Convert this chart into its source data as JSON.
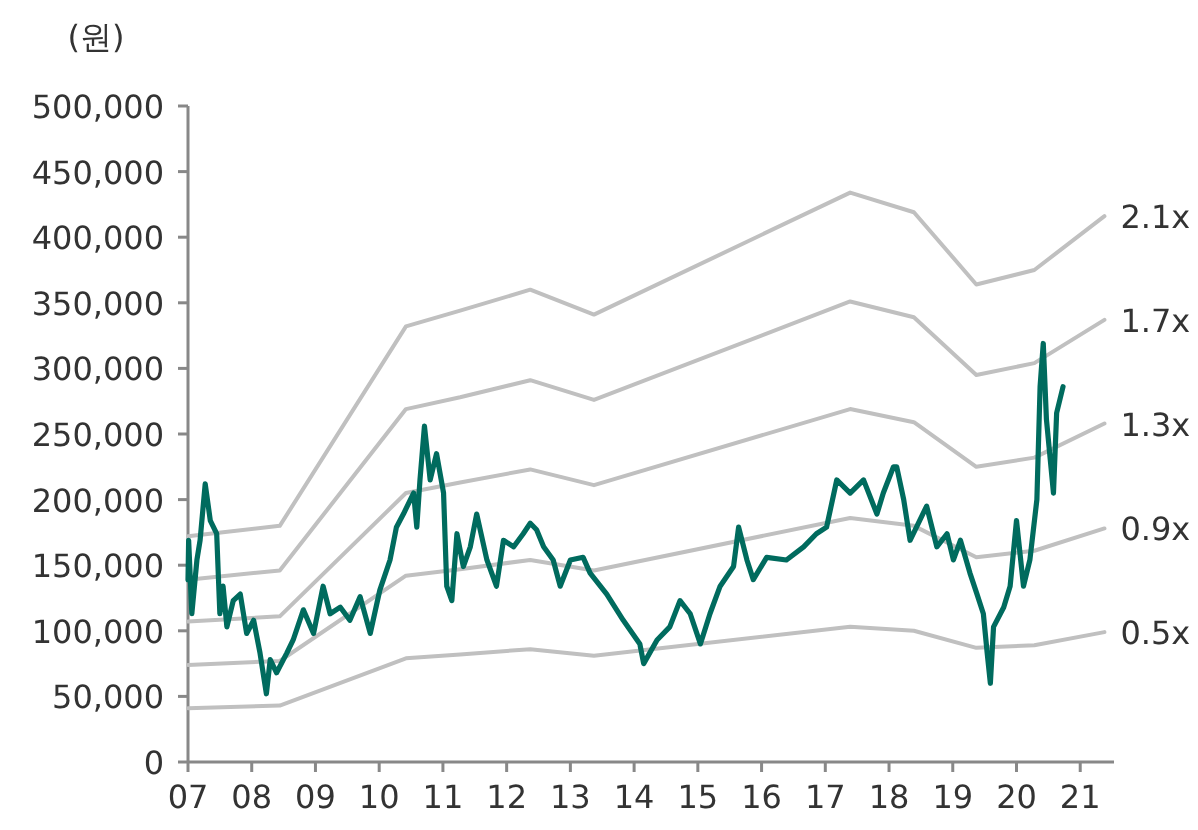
{
  "chart_data": {
    "type": "line",
    "ylabel": "(원)",
    "xlim": [
      2007,
      2021.53
    ],
    "ylim": [
      0,
      500000
    ],
    "xticks": [
      {
        "value": 2007,
        "label": "07"
      },
      {
        "value": 2008,
        "label": "08"
      },
      {
        "value": 2009,
        "label": "09"
      },
      {
        "value": 2010,
        "label": "10"
      },
      {
        "value": 2011,
        "label": "11"
      },
      {
        "value": 2012,
        "label": "12"
      },
      {
        "value": 2013,
        "label": "13"
      },
      {
        "value": 2014,
        "label": "14"
      },
      {
        "value": 2015,
        "label": "15"
      },
      {
        "value": 2016,
        "label": "16"
      },
      {
        "value": 2017,
        "label": "17"
      },
      {
        "value": 2018,
        "label": "18"
      },
      {
        "value": 2019,
        "label": "19"
      },
      {
        "value": 2020,
        "label": "20"
      },
      {
        "value": 2021,
        "label": "21"
      }
    ],
    "yticks": [
      0,
      {
        "value": 50000,
        "label": "50,000"
      },
      {
        "value": 100000,
        "label": "100,000"
      },
      {
        "value": 150000,
        "label": "150,000"
      },
      {
        "value": 200000,
        "label": "200,000"
      },
      {
        "value": 250000,
        "label": "250,000"
      },
      {
        "value": 300000,
        "label": "300,000"
      },
      {
        "value": 350000,
        "label": "350,000"
      },
      {
        "value": 400000,
        "label": "400,000"
      },
      {
        "value": 450000,
        "label": "450,000"
      },
      {
        "value": 500000,
        "label": "500,000"
      }
    ],
    "grid": false,
    "legend": false,
    "line_style": "solid",
    "series": [
      {
        "name": "2.1x",
        "color": "#c0c0c0",
        "x": [
          2007.0,
          2008.44,
          2010.42,
          2011.27,
          2012.37,
          2013.37,
          2017.39,
          2018.39,
          2019.37,
          2020.28,
          2021.38
        ],
        "values": [
          172000,
          180000,
          332000,
          344000,
          360000,
          341000,
          434000,
          419000,
          364000,
          375000,
          416000
        ]
      },
      {
        "name": "1.7x",
        "color": "#c0c0c0",
        "x": [
          2007.0,
          2008.44,
          2010.42,
          2011.27,
          2012.37,
          2013.37,
          2017.39,
          2018.39,
          2019.37,
          2020.28,
          2021.38
        ],
        "values": [
          139000,
          146000,
          269000,
          278000,
          291000,
          276000,
          351000,
          339000,
          295000,
          304000,
          337000
        ]
      },
      {
        "name": "1.3x",
        "color": "#c0c0c0",
        "x": [
          2007.0,
          2008.44,
          2010.42,
          2011.27,
          2012.37,
          2013.37,
          2017.39,
          2018.39,
          2019.37,
          2020.28,
          2021.38
        ],
        "values": [
          107000,
          111000,
          205000,
          213000,
          223000,
          211000,
          269000,
          259000,
          225000,
          232000,
          258000
        ]
      },
      {
        "name": "0.9x",
        "color": "#c0c0c0",
        "x": [
          2007.0,
          2008.44,
          2010.42,
          2011.27,
          2012.37,
          2013.37,
          2017.39,
          2018.39,
          2019.37,
          2020.28,
          2021.38
        ],
        "values": [
          74000,
          77000,
          142000,
          147000,
          154000,
          146000,
          186000,
          180000,
          156000,
          161000,
          178000
        ]
      },
      {
        "name": "0.5x",
        "color": "#c0c0c0",
        "x": [
          2007.0,
          2008.44,
          2010.42,
          2011.27,
          2012.37,
          2013.37,
          2017.39,
          2018.39,
          2019.37,
          2020.28,
          2021.38
        ],
        "values": [
          41000,
          43000,
          79000,
          82000,
          86000,
          81000,
          103000,
          100000,
          87000,
          89000,
          99000
        ]
      },
      {
        "color": "#006b5e",
        "x": [
          2007.0,
          2007.01,
          2007.06,
          2007.14,
          2007.19,
          2007.27,
          2007.35,
          2007.45,
          2007.5,
          2007.55,
          2007.61,
          2007.71,
          2007.82,
          2007.92,
          2008.03,
          2008.13,
          2008.23,
          2008.29,
          2008.39,
          2008.55,
          2008.65,
          2008.81,
          2008.97,
          2009.12,
          2009.23,
          2009.39,
          2009.54,
          2009.7,
          2009.86,
          2010.01,
          2010.17,
          2010.27,
          2010.38,
          2010.54,
          2010.59,
          2010.64,
          2010.71,
          2010.8,
          2010.9,
          2011.01,
          2011.06,
          2011.14,
          2011.22,
          2011.32,
          2011.43,
          2011.53,
          2011.69,
          2011.84,
          2011.95,
          2012.11,
          2012.26,
          2012.37,
          2012.47,
          2012.58,
          2012.73,
          2012.84,
          2013.0,
          2013.2,
          2013.31,
          2013.57,
          2013.83,
          2014.09,
          2014.15,
          2014.36,
          2014.56,
          2014.72,
          2014.88,
          2015.04,
          2015.19,
          2015.35,
          2015.56,
          2015.64,
          2015.77,
          2015.87,
          2016.08,
          2016.39,
          2016.66,
          2016.86,
          2017.02,
          2017.18,
          2017.39,
          2017.6,
          2017.81,
          2017.91,
          2018.07,
          2018.12,
          2018.23,
          2018.33,
          2018.59,
          2018.75,
          2018.91,
          2019.01,
          2019.12,
          2019.27,
          2019.38,
          2019.48,
          2019.54,
          2019.59,
          2019.64,
          2019.8,
          2019.9,
          2020.0,
          2020.11,
          2020.21,
          2020.32,
          2020.37,
          2020.42,
          2020.47,
          2020.58,
          2020.63,
          2020.73
        ],
        "values": [
          139000,
          169000,
          113000,
          154000,
          169000,
          212000,
          184000,
          174000,
          113000,
          134000,
          103000,
          123000,
          128000,
          98000,
          108000,
          83000,
          52000,
          78000,
          68000,
          83000,
          93000,
          116000,
          98000,
          134000,
          113000,
          118000,
          108000,
          126000,
          98000,
          131000,
          154000,
          179000,
          189000,
          205000,
          179000,
          215000,
          256000,
          215000,
          235000,
          205000,
          134000,
          123000,
          174000,
          149000,
          164000,
          189000,
          154000,
          134000,
          169000,
          164000,
          174000,
          182000,
          177000,
          164000,
          154000,
          134000,
          154000,
          156000,
          144000,
          128000,
          108000,
          90000,
          75000,
          93000,
          103000,
          123000,
          113000,
          90000,
          113000,
          134000,
          149000,
          179000,
          154000,
          139000,
          156000,
          154000,
          164000,
          174000,
          179000,
          215000,
          205000,
          215000,
          189000,
          205000,
          225000,
          225000,
          200000,
          169000,
          195000,
          164000,
          174000,
          154000,
          169000,
          144000,
          128000,
          113000,
          83000,
          60000,
          103000,
          118000,
          134000,
          184000,
          134000,
          154000,
          200000,
          286000,
          319000,
          261000,
          205000,
          266000,
          286000
        ]
      }
    ]
  }
}
